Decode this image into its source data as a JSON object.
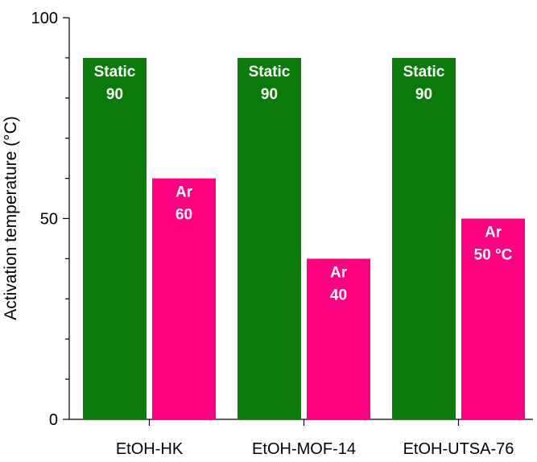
{
  "chart_data": {
    "type": "bar",
    "title": "",
    "xlabel": "",
    "ylabel": "Activation temperature (°C)",
    "ylim": [
      0,
      100
    ],
    "yticks_major": [
      0,
      50,
      100
    ],
    "yticks_minor_step": 10,
    "categories": [
      "EtOH-HK",
      "EtOH-MOF-14",
      "EtOH-UTSA-76"
    ],
    "series": [
      {
        "name": "Static",
        "color": "#0a7a0a",
        "values": [
          90,
          90,
          90
        ],
        "labels": [
          [
            "Static",
            "90"
          ],
          [
            "Static",
            "90"
          ],
          [
            "Static",
            "90"
          ]
        ]
      },
      {
        "name": "Ar",
        "color": "#ff0080",
        "values": [
          60,
          40,
          50
        ],
        "labels": [
          [
            "Ar",
            "60"
          ],
          [
            "Ar",
            "40"
          ],
          [
            "Ar",
            "50 °C"
          ]
        ]
      }
    ],
    "grid": false,
    "legend": "none"
  }
}
